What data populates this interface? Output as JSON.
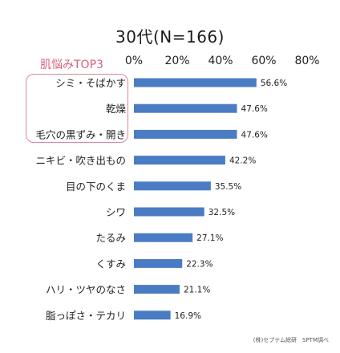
{
  "header": {
    "title": "30代(N=166)",
    "top3_label": "肌悩みTOP3"
  },
  "footer": {
    "source": "(株)セプテム総研　SPTM調べ"
  },
  "colors": {
    "bar": "#4a7cc4",
    "top3_border": "#d98a9a",
    "top3_text": "#d9607a"
  },
  "chart_data": {
    "type": "bar",
    "orientation": "horizontal",
    "title": "30代(N=166)",
    "categories": [
      "シミ・そばかす",
      "乾燥",
      "毛穴の黒ずみ・開き",
      "ニキビ・吹き出もの",
      "目の下のくま",
      "シワ",
      "たるみ",
      "くすみ",
      "ハリ・ツヤのなさ",
      "脂っぽさ・テカリ"
    ],
    "values": [
      56.6,
      47.6,
      47.6,
      42.2,
      35.5,
      32.5,
      27.1,
      22.3,
      21.1,
      16.9
    ],
    "value_labels": [
      "56.6%",
      "47.6%",
      "47.6%",
      "42.2%",
      "35.5%",
      "32.5%",
      "27.1%",
      "22.3%",
      "21.1%",
      "16.9%"
    ],
    "xlim": [
      0,
      80
    ],
    "ticks": [
      0,
      20,
      40,
      60,
      80
    ],
    "tick_labels": [
      "0%",
      "20%",
      "40%",
      "60%",
      "80%"
    ],
    "grid": false,
    "highlight_top_n": 3
  }
}
